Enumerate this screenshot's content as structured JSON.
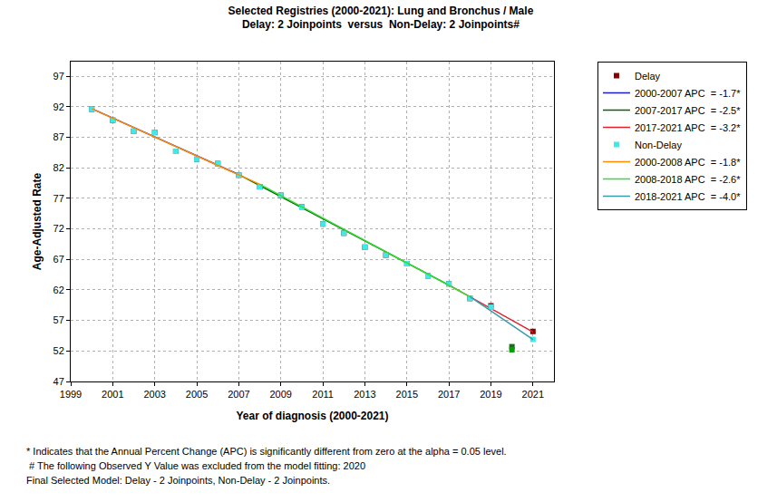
{
  "chart_data": {
    "type": "line",
    "title": "Selected Registries (2000-2021): Lung and Bronchus / Male",
    "subtitle": "Delay: 2 Joinpoints  versus  Non-Delay: 2 Joinpoints#",
    "x_label": "Year of diagnosis (2000-2021)",
    "y_label": "Age-Adjusted Rate",
    "xlim": [
      1999,
      2022
    ],
    "xticks": [
      1999,
      2001,
      2003,
      2005,
      2007,
      2009,
      2011,
      2013,
      2015,
      2017,
      2019,
      2021
    ],
    "ylim": [
      47,
      99.4
    ],
    "yticks": [
      47,
      52,
      57,
      62,
      67,
      72,
      77,
      82,
      87,
      92,
      97
    ],
    "grid": true,
    "legend": "right",
    "series": [
      {
        "name": "Delay",
        "type": "scatter",
        "marker": "square",
        "color": "#8b0000",
        "x": [
          2000,
          2001,
          2002,
          2003,
          2004,
          2005,
          2006,
          2007,
          2008,
          2009,
          2010,
          2011,
          2012,
          2013,
          2014,
          2015,
          2016,
          2017,
          2018,
          2019,
          2021
        ],
        "values": [
          91.6,
          89.8,
          88.0,
          87.8,
          84.7,
          83.4,
          82.7,
          80.8,
          78.9,
          77.5,
          75.6,
          72.8,
          71.3,
          69.0,
          67.7,
          66.3,
          64.3,
          63.0,
          60.6,
          59.4,
          55.2
        ]
      },
      {
        "name": "2000-2007 APC  = -1.7*",
        "type": "line",
        "color": "#1c1cc8",
        "x": [
          2000,
          2007
        ],
        "values": [
          91.7,
          80.9
        ]
      },
      {
        "name": "2007-2017 APC  = -2.5*",
        "type": "line",
        "color": "#006400",
        "x": [
          2007,
          2017
        ],
        "values": [
          80.9,
          62.8
        ]
      },
      {
        "name": "2017-2021 APC  = -3.2*",
        "type": "line",
        "color": "#e0202a",
        "x": [
          2017,
          2021
        ],
        "values": [
          62.8,
          55.1
        ]
      },
      {
        "name": "Non-Delay",
        "type": "scatter",
        "marker": "square",
        "color": "#40e8e8",
        "x": [
          2000,
          2001,
          2002,
          2003,
          2004,
          2005,
          2006,
          2007,
          2008,
          2009,
          2010,
          2011,
          2012,
          2013,
          2014,
          2015,
          2016,
          2017,
          2018,
          2019,
          2021
        ],
        "values": [
          91.6,
          89.8,
          88.0,
          87.8,
          84.7,
          83.4,
          82.7,
          80.8,
          78.9,
          77.5,
          75.6,
          72.8,
          71.3,
          69.0,
          67.7,
          66.3,
          64.3,
          63.0,
          60.6,
          59.2,
          53.9
        ]
      },
      {
        "name": "2000-2008 APC  = -1.8*",
        "type": "line",
        "color": "#ff8c00",
        "x": [
          2000,
          2008
        ],
        "values": [
          91.7,
          79.3
        ]
      },
      {
        "name": "2008-2018 APC  = -2.6*",
        "type": "line",
        "color": "#33dd33",
        "x": [
          2008,
          2018
        ],
        "values": [
          79.3,
          60.9
        ]
      },
      {
        "name": "2018-2021 APC  = -4.0*",
        "type": "line",
        "color": "#3a9aa8",
        "x": [
          2018,
          2021
        ],
        "values": [
          60.9,
          53.9
        ]
      },
      {
        "type": "scatter",
        "marker": "square",
        "color": "#1a6e1a",
        "x": [
          2020
        ],
        "values": [
          52.7
        ]
      },
      {
        "type": "scatter",
        "marker": "square",
        "color": "#0a9a0a",
        "x": [
          2020
        ],
        "values": [
          52.2
        ]
      }
    ],
    "annotations": [
      "* Indicates that the Annual Percent Change (APC) is significantly different from zero at the alpha = 0.05 level.",
      " # The following Observed Y Value was excluded from the model fitting: 2020",
      "Final Selected Model: Delay - 2 Joinpoints, Non-Delay - 2 Joinpoints."
    ]
  }
}
